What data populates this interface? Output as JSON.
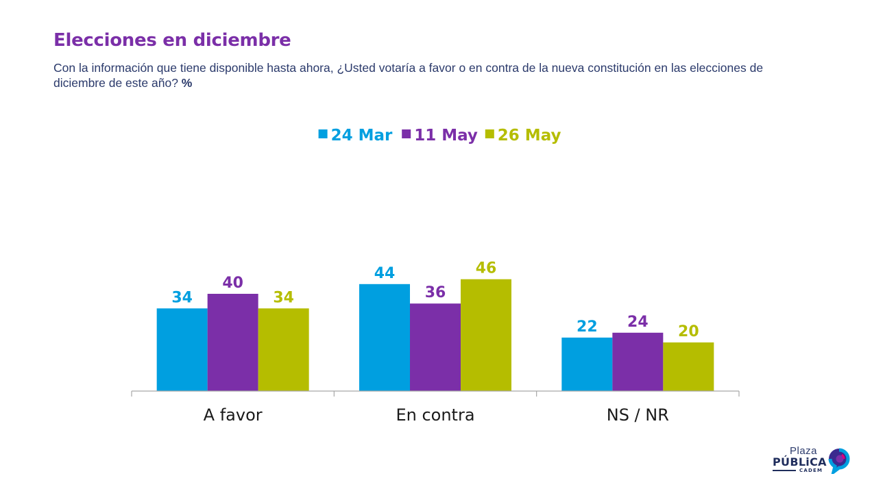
{
  "header": {
    "title": "Elecciones en diciembre",
    "question": "Con la información que tiene disponible hasta ahora, ¿Usted votaría a favor o en contra de la nueva constitución en las elecciones de diciembre de este año?",
    "unit": "%"
  },
  "logo": {
    "line1": "Plaza",
    "line2": "PÚBLiCA",
    "line3": "CADEM",
    "mark_icon": "speech-bubble-swirl-icon"
  },
  "chart_data": {
    "type": "bar",
    "title": "Elecciones en diciembre",
    "categories": [
      "A favor",
      "En contra",
      "NS / NR"
    ],
    "series": [
      {
        "name": "24 Mar",
        "color": "#009fe0",
        "values": [
          34,
          44,
          22
        ]
      },
      {
        "name": "11 May",
        "color": "#7b2fa8",
        "values": [
          40,
          36,
          24
        ]
      },
      {
        "name": "26 May",
        "color": "#b5bd00",
        "values": [
          34,
          46,
          20
        ]
      }
    ],
    "ylim": [
      0,
      50
    ],
    "grid": false,
    "legend_position": "top-center",
    "data_labels": true,
    "xlabel": "",
    "ylabel": ""
  }
}
